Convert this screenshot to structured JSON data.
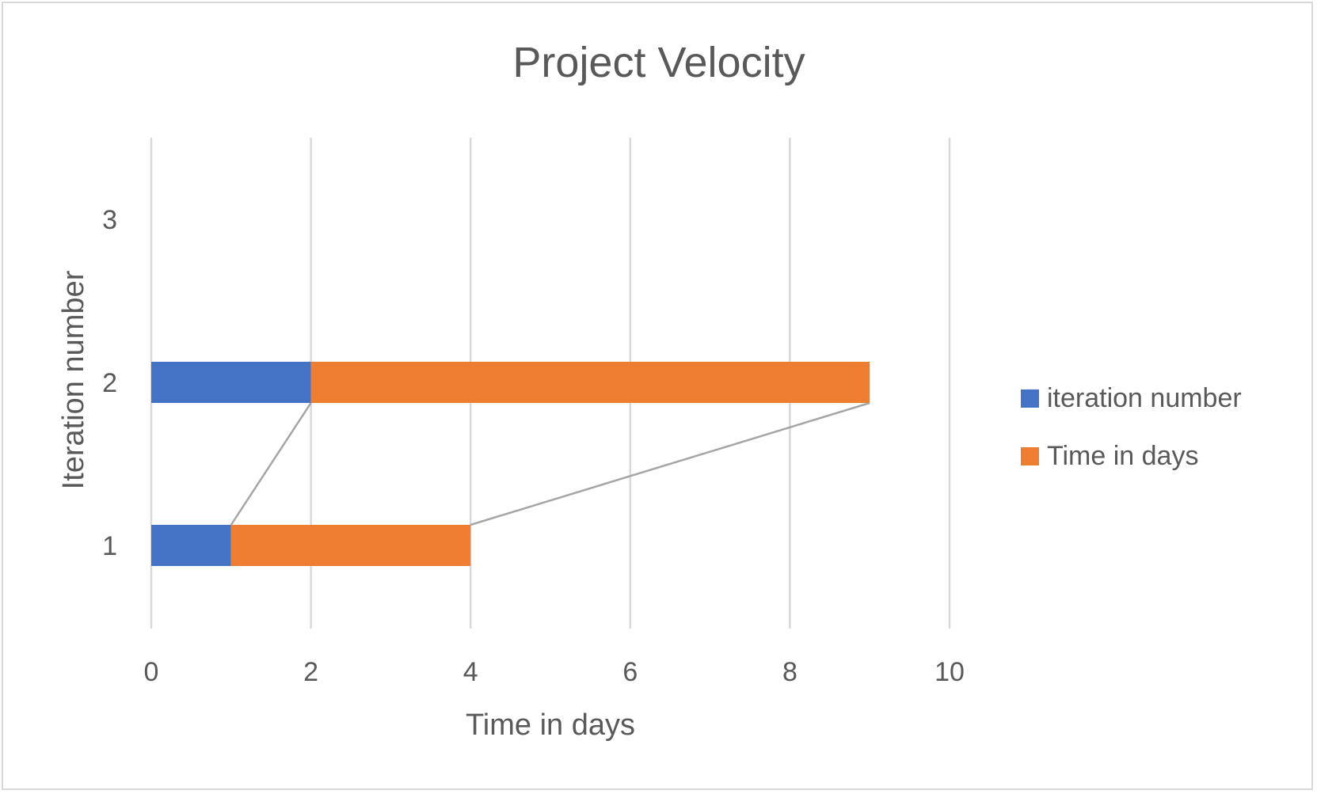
{
  "chart_data": {
    "type": "bar",
    "orientation": "horizontal",
    "stacked": true,
    "title": "Project Velocity",
    "xlabel": "Time in days",
    "ylabel": "Iteration number",
    "categories": [
      "1",
      "2",
      "3"
    ],
    "x_ticks": [
      "0",
      "2",
      "4",
      "6",
      "8",
      "10"
    ],
    "xlim": [
      0,
      10
    ],
    "grid": "vertical",
    "series": [
      {
        "name": "iteration number",
        "values": [
          1,
          2,
          null
        ],
        "color": "#4472C4"
      },
      {
        "name": "Time in days",
        "values": [
          3,
          7,
          null
        ],
        "color": "#ED7D31"
      }
    ],
    "series_lines": true,
    "series_line_color": "#A5A5A5",
    "legend_position": "right"
  }
}
